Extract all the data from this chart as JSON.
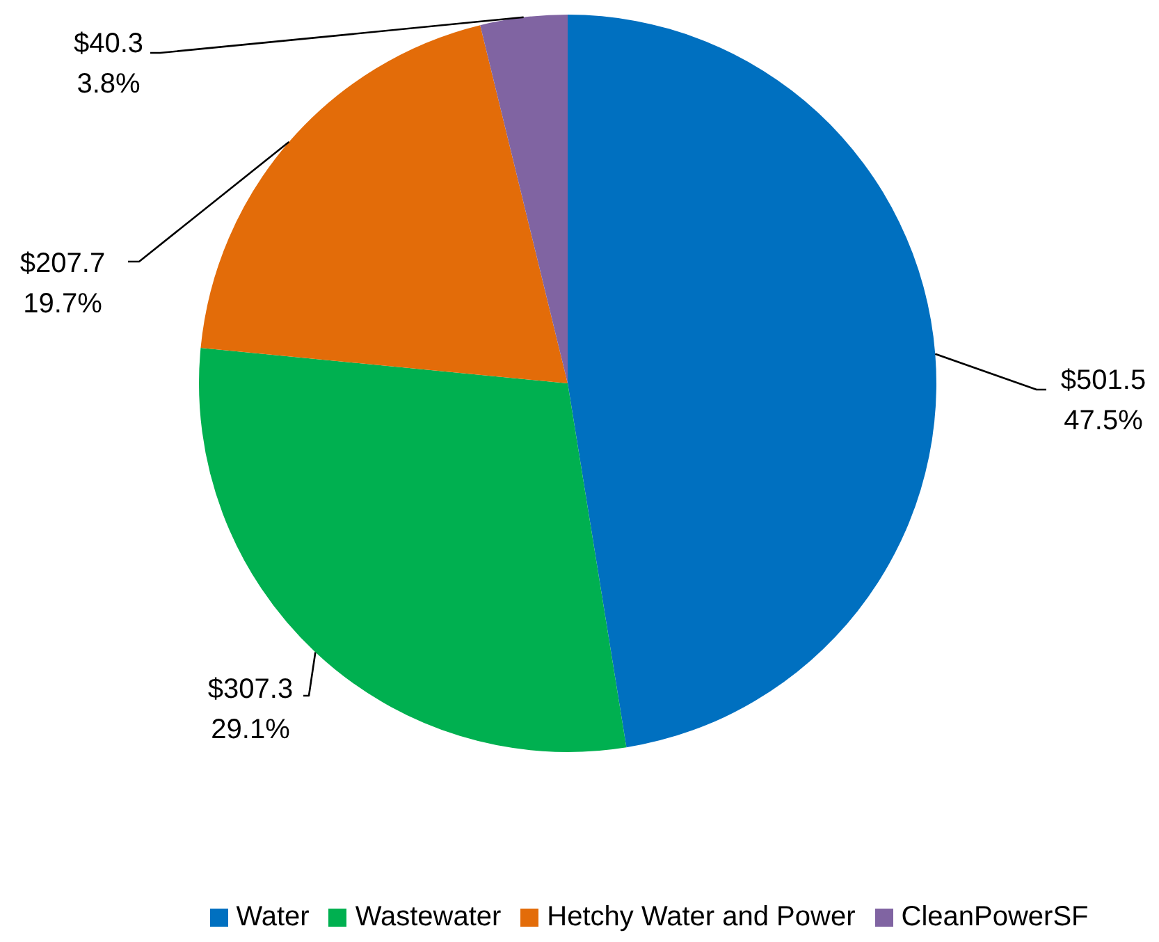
{
  "chart_data": {
    "type": "pie",
    "categories": [
      "Water",
      "Wastewater",
      "Hetchy Water and Power",
      "CleanPowerSF"
    ],
    "values": [
      501.5,
      307.3,
      207.7,
      40.3
    ],
    "colors": [
      "#0070c0",
      "#00b050",
      "#e36c09",
      "#8064a2"
    ],
    "value_labels": [
      "$501.5\n47.5%",
      "$307.3\n29.1%",
      "$207.7\n19.7%",
      "$40.3\n3.8%"
    ],
    "legend": "bottom"
  }
}
